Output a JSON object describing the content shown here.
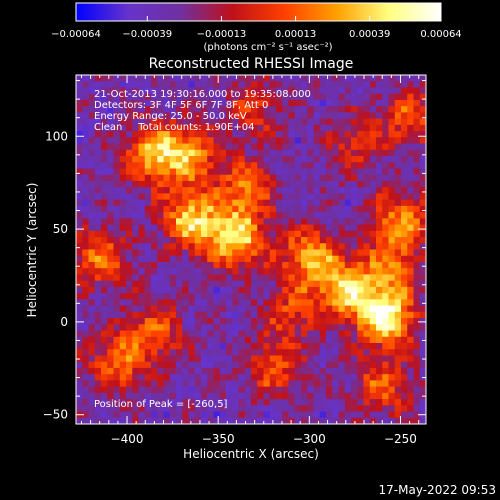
{
  "chart_data": {
    "type": "heatmap",
    "title": "Reconstructed RHESSI Image",
    "xlabel": "Heliocentric X (arcsec)",
    "ylabel": "Heliocentric Y (arcsec)",
    "xlim": [
      -428,
      -236
    ],
    "ylim": [
      -55,
      133
    ],
    "x_ticks": [
      -400,
      -350,
      -300,
      -250
    ],
    "x_tick_labels": [
      "−400",
      "−350",
      "−300",
      "−250"
    ],
    "y_ticks": [
      -50,
      0,
      50,
      100
    ],
    "y_tick_labels": [
      "−50",
      "0",
      "50",
      "100"
    ],
    "colorbar": {
      "range": [
        -0.00064,
        0.00064
      ],
      "ticks": [
        -0.00064,
        -0.00039,
        -0.00013,
        0.00013,
        0.00039,
        0.00064
      ],
      "tick_labels": [
        "−0.00064",
        "−0.00039",
        "−0.00013",
        "0.00013",
        "0.00039",
        "0.00064"
      ],
      "unit_label": "(photons cm⁻² s⁻¹ asec⁻²)",
      "colors": [
        "#0000ff",
        "#6633cc",
        "#7030a0",
        "#c0101a",
        "#ff4000",
        "#ffa000",
        "#ffff80",
        "#ffffff"
      ]
    },
    "annotations": [
      "21-Oct-2013 19:30:16.000 to 19:35:08.000",
      "Detectors: 3F 4F 5F 6F 7F 8F, Att 0",
      "Energy Range: 25.0 - 50.0 keV",
      "Clean     Total counts: 1.90E+04"
    ],
    "peak_label": "Position of Peak = [-260,5]",
    "sources": [
      {
        "x": -258,
        "y": 3,
        "amp": 1.0
      },
      {
        "x": -280,
        "y": 18,
        "amp": 0.8
      },
      {
        "x": -300,
        "y": 35,
        "amp": 0.7
      },
      {
        "x": -340,
        "y": 45,
        "amp": 0.85
      },
      {
        "x": -365,
        "y": 55,
        "amp": 0.8
      },
      {
        "x": -385,
        "y": 90,
        "amp": 0.75
      },
      {
        "x": -365,
        "y": 90,
        "amp": 0.6
      },
      {
        "x": -335,
        "y": 72,
        "amp": 0.55
      },
      {
        "x": -250,
        "y": 55,
        "amp": 0.6
      },
      {
        "x": -255,
        "y": 30,
        "amp": 0.5
      },
      {
        "x": -245,
        "y": 110,
        "amp": 0.5
      },
      {
        "x": -415,
        "y": 35,
        "amp": 0.55
      },
      {
        "x": -405,
        "y": -22,
        "amp": 0.55
      },
      {
        "x": -385,
        "y": -5,
        "amp": 0.5
      },
      {
        "x": -320,
        "y": -25,
        "amp": 0.45
      },
      {
        "x": -260,
        "y": -35,
        "amp": 0.5
      },
      {
        "x": -330,
        "y": 115,
        "amp": 0.4
      },
      {
        "x": -275,
        "y": 95,
        "amp": 0.35
      },
      {
        "x": -310,
        "y": 5,
        "amp": 0.4
      }
    ]
  },
  "timestamp": "17-May-2022 09:53"
}
